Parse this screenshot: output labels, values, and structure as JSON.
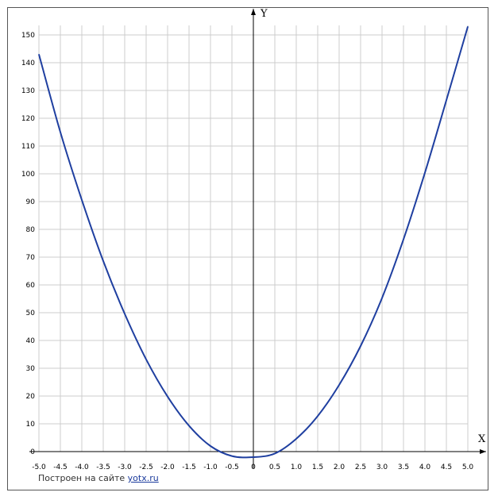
{
  "chart_data": {
    "type": "line",
    "title": "",
    "xlabel": "X",
    "ylabel": "Y",
    "xlim": [
      -5.0,
      5.0
    ],
    "ylim": [
      0,
      155
    ],
    "x_ticks": [
      "-5.0",
      "-4.5",
      "-4.0",
      "-3.5",
      "-3.0",
      "-2.5",
      "-2.0",
      "-1.5",
      "-1.0",
      "-0.5",
      "0",
      "0.5",
      "1.0",
      "1.5",
      "2.0",
      "2.5",
      "3.0",
      "3.5",
      "4.0",
      "4.5",
      "5.0"
    ],
    "y_ticks": [
      "0",
      "10",
      "20",
      "30",
      "40",
      "50",
      "60",
      "70",
      "80",
      "90",
      "100",
      "110",
      "120",
      "130",
      "140",
      "150"
    ],
    "grid": true,
    "series": [
      {
        "x": [
          -5.0,
          -4.5,
          -4.0,
          -3.5,
          -3.0,
          -2.5,
          -2.0,
          -1.5,
          -1.0,
          -0.5,
          0,
          0.5,
          1.0,
          1.5,
          2.0,
          2.5,
          3.0,
          3.5,
          4.0,
          4.5,
          5.0
        ],
        "y": [
          143,
          115,
          90.6,
          68.6,
          49.6,
          33.2,
          19.8,
          9.3,
          2,
          -1.6,
          -2,
          -0.7,
          4.6,
          12.8,
          24.0,
          38.0,
          55.3,
          76.4,
          100.4,
          126.5,
          153
        ],
        "color": "#1f3fa0"
      }
    ]
  },
  "credit": {
    "prefix": "Построен на сайте",
    "link": "yotx.ru"
  },
  "colors": {
    "grid": "#cccccc",
    "axis": "#000000",
    "curve": "#1f3fa0"
  }
}
